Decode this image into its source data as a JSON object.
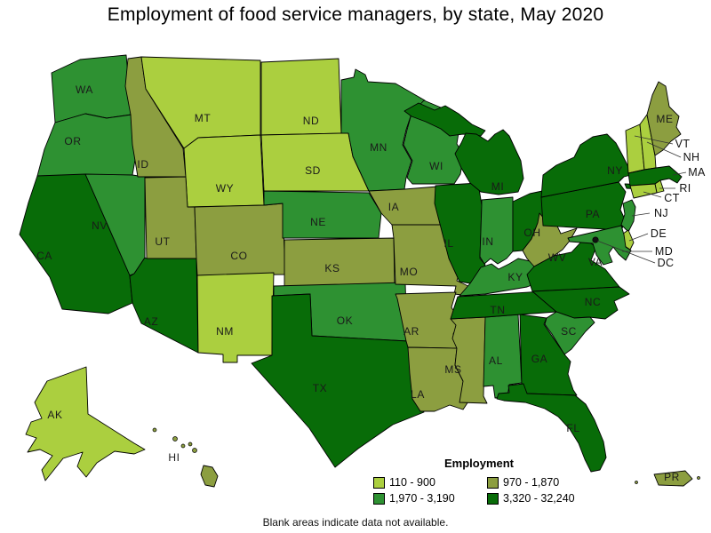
{
  "title": "Employment of food service managers, by state, May 2020",
  "footnote": "Blank areas indicate data not available.",
  "legend": {
    "title": "Employment",
    "items": [
      {
        "label": "110 - 900",
        "color": "#ABCF3F"
      },
      {
        "label": "970 - 1,870",
        "color": "#8C9E40"
      },
      {
        "label": "1,970 - 3,190",
        "color": "#2E9132"
      },
      {
        "label": "3,320 - 32,240",
        "color": "#086C08"
      }
    ]
  },
  "map": {
    "callout_labels": [
      "VT",
      "NH",
      "MA",
      "RI",
      "CT",
      "NJ",
      "DE",
      "MD",
      "DC"
    ],
    "dc_marker_color": "#111111",
    "border_color": "#000000"
  },
  "chart_data": {
    "type": "choropleth",
    "geography": "United States, by state (plus PR)",
    "title": "Employment of food service managers, by state, May 2020",
    "legend_title": "Employment",
    "note": "Blank areas indicate data not available.",
    "bins": [
      {
        "label": "110 - 900",
        "color": "#ABCF3F"
      },
      {
        "label": "970 - 1,870",
        "color": "#8C9E40"
      },
      {
        "label": "1,970 - 3,190",
        "color": "#2E9132"
      },
      {
        "label": "3,320 - 32,240",
        "color": "#086C08"
      }
    ],
    "state_ranges": {
      "WA": "1,970 - 3,190",
      "OR": "1,970 - 3,190",
      "CA": "3,320 - 32,240",
      "NV": "1,970 - 3,190",
      "ID": "970 - 1,870",
      "MT": "110 - 900",
      "WY": "110 - 900",
      "UT": "970 - 1,870",
      "CO": "970 - 1,870",
      "AZ": "3,320 - 32,240",
      "NM": "110 - 900",
      "ND": "110 - 900",
      "SD": "110 - 900",
      "NE": "1,970 - 3,190",
      "KS": "970 - 1,870",
      "OK": "1,970 - 3,190",
      "TX": "3,320 - 32,240",
      "MN": "1,970 - 3,190",
      "IA": "970 - 1,870",
      "MO": "970 - 1,870",
      "AR": "970 - 1,870",
      "LA": "970 - 1,870",
      "WI": "1,970 - 3,190",
      "IL": "3,320 - 32,240",
      "MS": "970 - 1,870",
      "AL": "1,970 - 3,190",
      "TN": "3,320 - 32,240",
      "KY": "1,970 - 3,190",
      "IN": "1,970 - 3,190",
      "OH": "3,320 - 32,240",
      "WV": "970 - 1,870",
      "MI": "3,320 - 32,240",
      "PA": "3,320 - 32,240",
      "NY": "3,320 - 32,240",
      "VA": "3,320 - 32,240",
      "NC": "3,320 - 32,240",
      "SC": "1,970 - 3,190",
      "GA": "3,320 - 32,240",
      "FL": "3,320 - 32,240",
      "VT": "110 - 900",
      "NH": "110 - 900",
      "ME": "970 - 1,870",
      "MA": "3,320 - 32,240",
      "RI": "110 - 900",
      "CT": "110 - 900",
      "NJ": "1,970 - 3,190",
      "DE": "110 - 900",
      "MD": "1,970 - 3,190",
      "DC": null,
      "AK": "110 - 900",
      "HI": "970 - 1,870",
      "PR": "970 - 1,870"
    }
  }
}
